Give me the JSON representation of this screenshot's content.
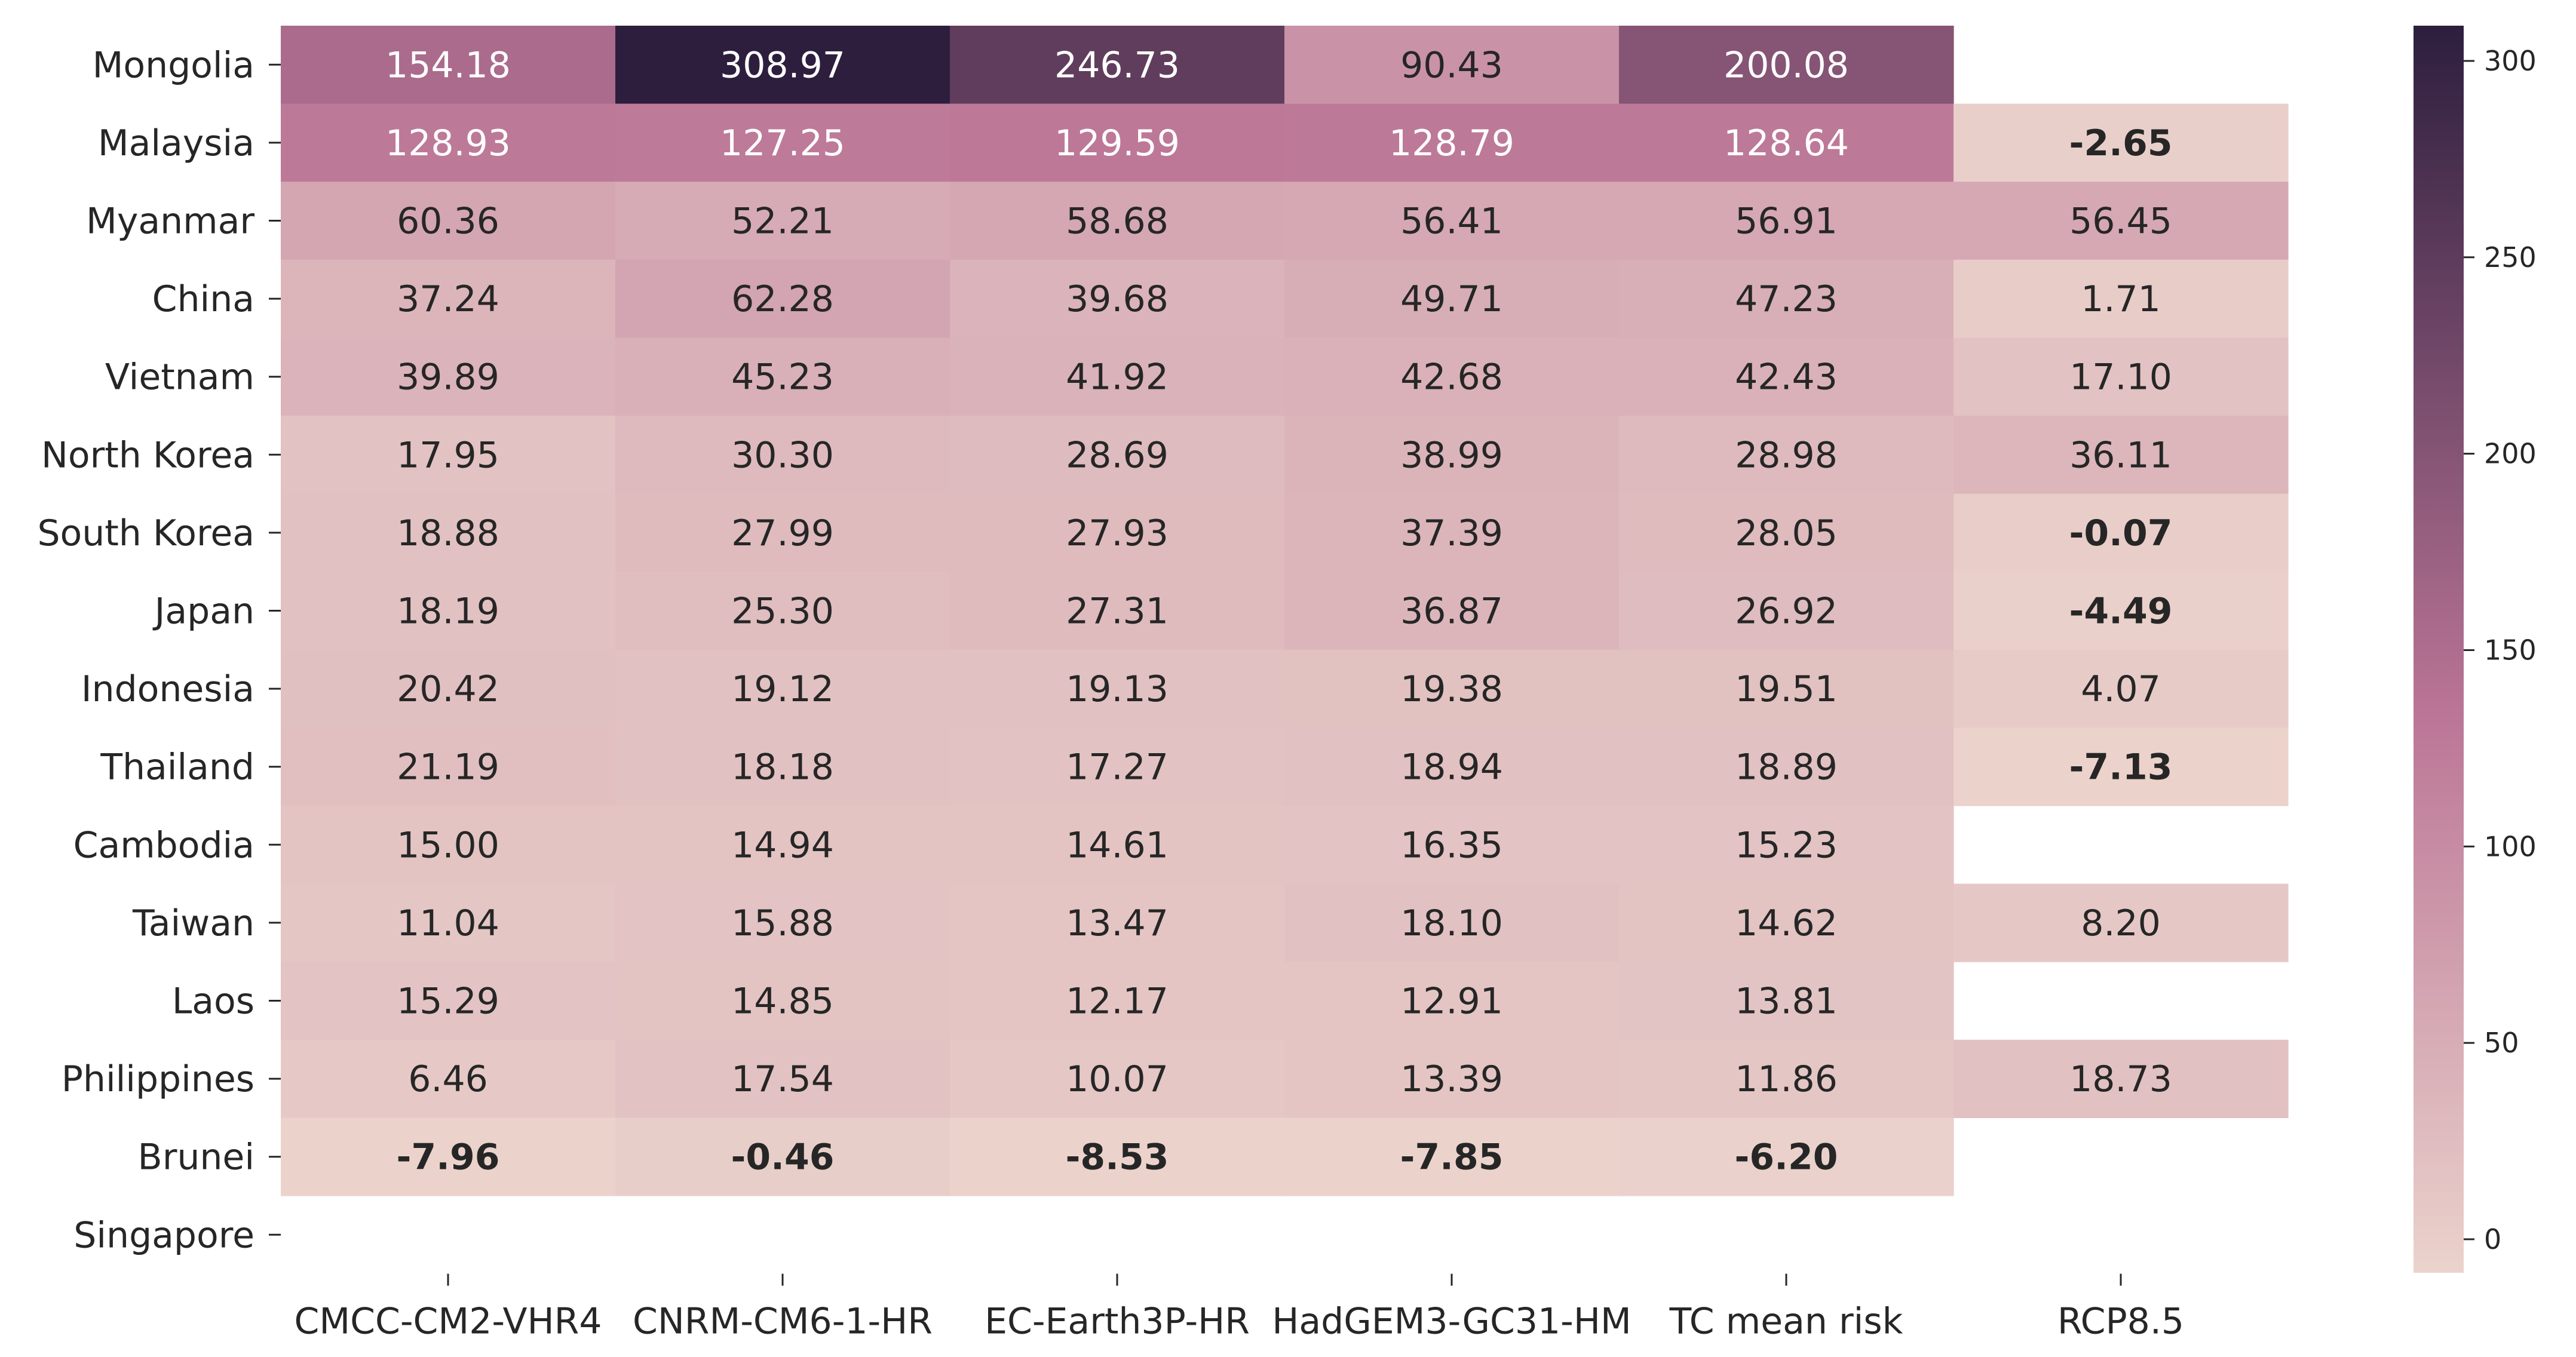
{
  "chart_data": {
    "type": "heatmap",
    "rows": [
      "Mongolia",
      "Malaysia",
      "Myanmar",
      "China",
      "Vietnam",
      "North Korea",
      "South Korea",
      "Japan",
      "Indonesia",
      "Thailand",
      "Cambodia",
      "Taiwan",
      "Laos",
      "Philippines",
      "Brunei",
      "Singapore"
    ],
    "columns": [
      "CMCC-CM2-VHR4",
      "CNRM-CM6-1-HR",
      "EC-Earth3P-HR",
      "HadGEM3-GC31-HM",
      "TC mean risk",
      "RCP8.5"
    ],
    "values": [
      [
        154.18,
        308.97,
        246.73,
        90.43,
        200.08,
        null
      ],
      [
        128.93,
        127.25,
        129.59,
        128.79,
        128.64,
        -2.65
      ],
      [
        60.36,
        52.21,
        58.68,
        56.41,
        56.91,
        56.45
      ],
      [
        37.24,
        62.28,
        39.68,
        49.71,
        47.23,
        1.71
      ],
      [
        39.89,
        45.23,
        41.92,
        42.68,
        42.43,
        17.1
      ],
      [
        17.95,
        30.3,
        28.69,
        38.99,
        28.98,
        36.11
      ],
      [
        18.88,
        27.99,
        27.93,
        37.39,
        28.05,
        -0.07
      ],
      [
        18.19,
        25.3,
        27.31,
        36.87,
        26.92,
        -4.49
      ],
      [
        20.42,
        19.12,
        19.13,
        19.38,
        19.51,
        4.07
      ],
      [
        21.19,
        18.18,
        17.27,
        18.94,
        18.89,
        -7.13
      ],
      [
        15.0,
        14.94,
        14.61,
        16.35,
        15.23,
        null
      ],
      [
        11.04,
        15.88,
        13.47,
        18.1,
        14.62,
        8.2
      ],
      [
        15.29,
        14.85,
        12.17,
        12.91,
        13.81,
        null
      ],
      [
        6.46,
        17.54,
        10.07,
        13.39,
        11.86,
        18.73
      ],
      [
        -7.96,
        -0.46,
        -8.53,
        -7.85,
        -6.2,
        null
      ],
      [
        null,
        null,
        null,
        null,
        null,
        null
      ]
    ],
    "colorbar": {
      "min": -8.53,
      "max": 308.97,
      "ticks": [
        "0",
        "50",
        "100",
        "150",
        "200",
        "250",
        "300"
      ],
      "low_color": "#ebd3cc",
      "mid_color": "#bb7596",
      "high_color": "#2d1e3e"
    },
    "title": "",
    "xlabel": "",
    "ylabel": ""
  }
}
